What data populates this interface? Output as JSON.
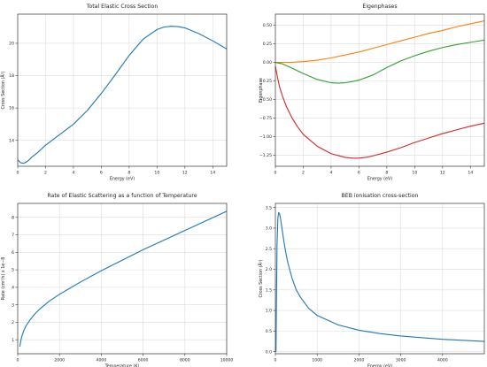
{
  "chart_data": [
    {
      "type": "line",
      "title": "Total Elastic Cross Section",
      "xlabel": "Energy (eV)",
      "ylabel": "Cross Section (Å²)",
      "xlim": [
        0,
        15
      ],
      "ylim": [
        12.4,
        21.8
      ],
      "xticks": [
        0,
        2,
        4,
        6,
        8,
        10,
        12,
        14
      ],
      "yticks": [
        14,
        16,
        18,
        20
      ],
      "grid": true,
      "series": [
        {
          "color": "#1f77b4",
          "x": [
            0.0,
            0.2,
            0.4,
            0.6,
            0.8,
            1.0,
            1.5,
            2.0,
            3.0,
            4.0,
            5.0,
            6.0,
            7.0,
            8.0,
            9.0,
            10.0,
            10.5,
            11.0,
            11.5,
            12.0,
            13.0,
            14.0,
            15.0
          ],
          "y": [
            12.8,
            12.62,
            12.58,
            12.65,
            12.78,
            12.95,
            13.3,
            13.7,
            14.35,
            15.0,
            15.85,
            16.9,
            18.05,
            19.25,
            20.25,
            20.85,
            21.0,
            21.05,
            21.03,
            20.95,
            20.6,
            20.15,
            19.65
          ]
        }
      ]
    },
    {
      "type": "line",
      "title": "Eigenphases",
      "xlabel": "Energy (eV)",
      "ylabel": "Eigenphase",
      "xlim": [
        0,
        15
      ],
      "ylim": [
        -1.4,
        0.65
      ],
      "xticks": [
        0,
        2,
        4,
        6,
        8,
        10,
        12,
        14
      ],
      "yticks": [
        -1.25,
        -1.0,
        -0.75,
        -0.5,
        -0.25,
        0.0,
        0.25,
        0.5
      ],
      "grid": true,
      "series": [
        {
          "color": "#ff7f0e",
          "x": [
            0,
            1,
            2,
            3,
            4,
            5,
            6,
            7,
            8,
            9,
            10,
            11,
            12,
            13,
            14,
            15
          ],
          "y": [
            0.0,
            0.0,
            0.01,
            0.03,
            0.06,
            0.1,
            0.14,
            0.19,
            0.24,
            0.29,
            0.34,
            0.39,
            0.43,
            0.48,
            0.52,
            0.56
          ]
        },
        {
          "color": "#2ca02c",
          "x": [
            0,
            0.5,
            1,
            2,
            3,
            4,
            4.5,
            5,
            6,
            7,
            8,
            9,
            10,
            11,
            12,
            13,
            14,
            15
          ],
          "y": [
            0.0,
            -0.02,
            -0.06,
            -0.15,
            -0.23,
            -0.275,
            -0.28,
            -0.275,
            -0.24,
            -0.17,
            -0.07,
            0.02,
            0.09,
            0.15,
            0.2,
            0.24,
            0.27,
            0.3
          ]
        },
        {
          "color": "#d62728",
          "x": [
            0.0,
            0.15,
            0.3,
            0.5,
            0.8,
            1.2,
            1.6,
            2.0,
            3.0,
            4.0,
            5.0,
            5.5,
            6.0,
            6.5,
            7.0,
            8.0,
            9.0,
            10.0,
            11.0,
            12.0,
            13.0,
            14.0,
            15.0
          ],
          "y": [
            -0.05,
            -0.2,
            -0.33,
            -0.45,
            -0.6,
            -0.75,
            -0.87,
            -0.97,
            -1.13,
            -1.23,
            -1.28,
            -1.29,
            -1.29,
            -1.28,
            -1.26,
            -1.21,
            -1.15,
            -1.08,
            -1.02,
            -0.96,
            -0.91,
            -0.86,
            -0.82
          ]
        }
      ]
    },
    {
      "type": "line",
      "title": "Rate of Elastic Scattering as a function of Temperature",
      "xlabel": "Temperature (K)",
      "ylabel": "Rate (cm³/s) x 1e−8",
      "xlim": [
        0,
        10000
      ],
      "ylim": [
        0.2,
        8.8
      ],
      "xticks": [
        0,
        2000,
        4000,
        6000,
        8000,
        10000
      ],
      "yticks": [
        1,
        2,
        3,
        4,
        5,
        6,
        7,
        8
      ],
      "grid": true,
      "series": [
        {
          "color": "#1f77b4",
          "x": [
            100,
            150,
            200,
            300,
            400,
            600,
            800,
            1000,
            1500,
            2000,
            2500,
            3000,
            4000,
            5000,
            6000,
            7000,
            8000,
            9000,
            10000
          ],
          "y": [
            0.6,
            0.95,
            1.2,
            1.55,
            1.8,
            2.15,
            2.45,
            2.7,
            3.2,
            3.6,
            3.95,
            4.3,
            4.95,
            5.55,
            6.15,
            6.7,
            7.25,
            7.8,
            8.35
          ]
        }
      ]
    },
    {
      "type": "line",
      "title": "BEB ionisation cross-section",
      "xlabel": "Energy (eV)",
      "ylabel": "Cross Section (Å²)",
      "xlim": [
        0,
        5000
      ],
      "ylim": [
        -0.05,
        3.6
      ],
      "xticks": [
        0,
        1000,
        2000,
        3000,
        4000
      ],
      "yticks": [
        0.0,
        0.5,
        1.0,
        1.5,
        2.0,
        2.5,
        3.0,
        3.5
      ],
      "grid": true,
      "series": [
        {
          "color": "#1f77b4",
          "x": [
            15,
            25,
            40,
            60,
            80,
            100,
            120,
            150,
            200,
            250,
            300,
            400,
            500,
            600,
            800,
            1000,
            1500,
            2000,
            2500,
            3000,
            4000,
            5000
          ],
          "y": [
            0.0,
            1.2,
            2.6,
            3.25,
            3.38,
            3.35,
            3.25,
            3.05,
            2.7,
            2.4,
            2.15,
            1.78,
            1.5,
            1.32,
            1.05,
            0.88,
            0.65,
            0.52,
            0.44,
            0.38,
            0.3,
            0.25
          ]
        }
      ]
    }
  ]
}
